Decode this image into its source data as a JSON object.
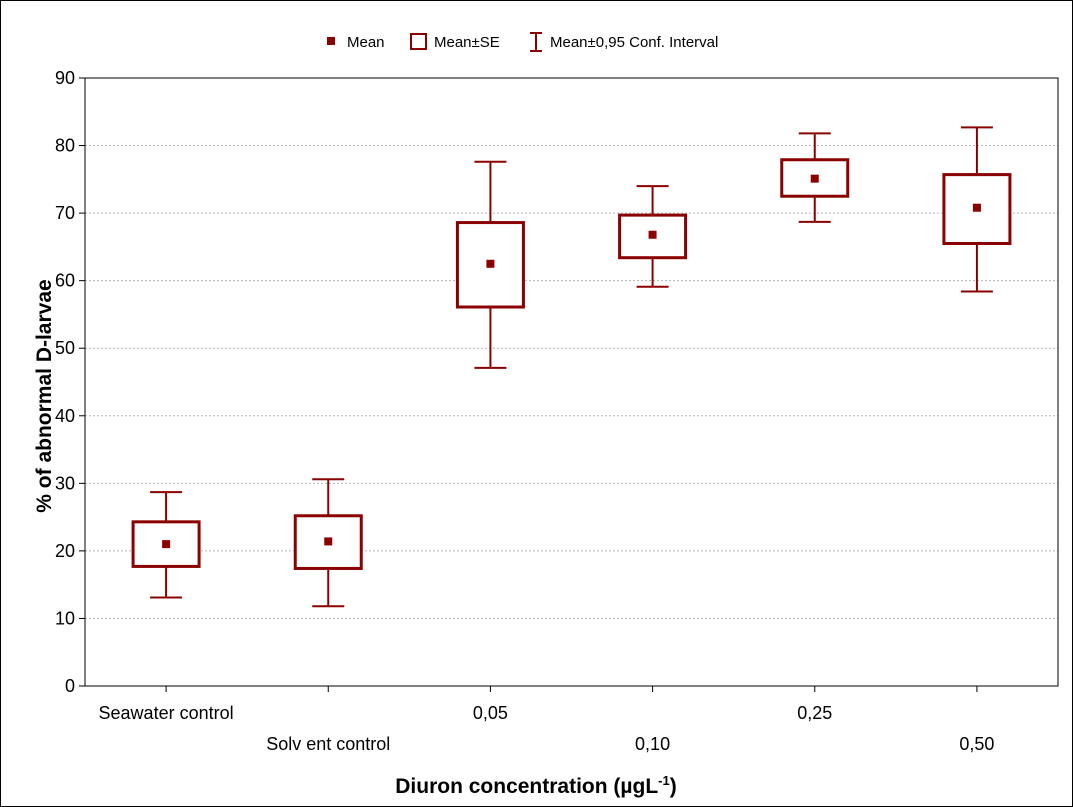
{
  "chart_data": {
    "type": "box",
    "title": "",
    "xlabel": "Diuron concentration (µgL",
    "xlabel_sup": "-1",
    "xlabel_suffix": ")",
    "ylabel": "% of abnormal D-larvae",
    "ylim": [
      0,
      90
    ],
    "yticks": [
      0,
      10,
      20,
      30,
      40,
      50,
      60,
      70,
      80,
      90
    ],
    "grid": true,
    "legend_position": "top-center",
    "legend": [
      {
        "marker": "square-filled",
        "label": "Mean"
      },
      {
        "marker": "box",
        "label": "Mean±SE"
      },
      {
        "marker": "whisker",
        "label": "Mean±0,95 Conf. Interval"
      }
    ],
    "color": "#8b0000",
    "categories": [
      "Seawater control",
      "Solv ent control",
      "0,05",
      "0,10",
      "0,25",
      "0,50"
    ],
    "series": [
      {
        "mean": [
          21.0,
          21.4,
          62.5,
          66.8,
          75.1,
          70.8
        ],
        "se_low": [
          17.7,
          17.4,
          56.1,
          63.4,
          72.5,
          65.5
        ],
        "se_high": [
          24.3,
          25.2,
          68.6,
          69.7,
          77.9,
          75.7
        ],
        "ci_low": [
          13.1,
          11.8,
          47.1,
          59.1,
          68.7,
          58.4
        ],
        "ci_high": [
          28.7,
          30.6,
          77.6,
          74.0,
          81.8,
          82.7
        ]
      }
    ]
  }
}
